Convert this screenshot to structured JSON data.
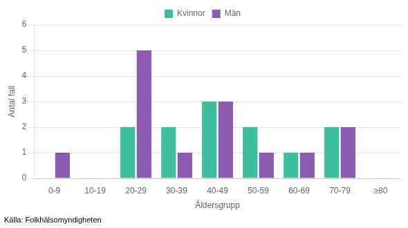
{
  "chart_data": {
    "type": "bar",
    "categories": [
      "0-9",
      "10-19",
      "20-29",
      "30-39",
      "40-49",
      "50-59",
      "60-69",
      "70-79",
      "≥80"
    ],
    "series": [
      {
        "name": "Kvinnor",
        "color": "#3dbf9e",
        "values": [
          0,
          0,
          2,
          2,
          3,
          2,
          1,
          2,
          0
        ]
      },
      {
        "name": "Män",
        "color": "#8b5bb1",
        "values": [
          1,
          0,
          5,
          1,
          3,
          1,
          1,
          2,
          0
        ]
      }
    ],
    "xlabel": "Åldersgrupp",
    "ylabel": "Antal fall",
    "source": "Källa: Folkhälsomyndigheten",
    "ylim": [
      0,
      6
    ],
    "yticks": [
      0,
      1,
      2,
      3,
      4,
      5,
      6
    ],
    "grid": true,
    "legend": "top"
  }
}
